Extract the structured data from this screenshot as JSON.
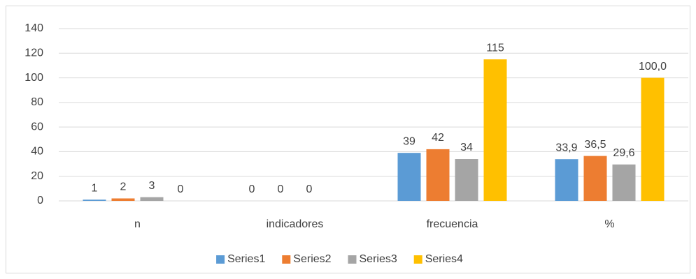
{
  "chart_data": {
    "type": "bar",
    "categories": [
      "n",
      "indicadores",
      "frecuencia",
      "%"
    ],
    "series": [
      {
        "name": "Series1",
        "color": "#5b9bd5",
        "values": [
          1,
          0,
          39,
          33.9
        ],
        "value_labels": [
          "1",
          "0",
          "39",
          "33,9"
        ]
      },
      {
        "name": "Series2",
        "color": "#ed7d31",
        "values": [
          2,
          0,
          42,
          36.5
        ],
        "value_labels": [
          "2",
          "0",
          "42",
          "36,5"
        ]
      },
      {
        "name": "Series3",
        "color": "#a5a5a5",
        "values": [
          3,
          0,
          34,
          29.6
        ],
        "value_labels": [
          "3",
          "0",
          "34",
          "29,6"
        ]
      },
      {
        "name": "Series4",
        "color": "#ffc000",
        "values": [
          0,
          null,
          115,
          100.0
        ],
        "value_labels": [
          "0",
          null,
          "115",
          "100,0"
        ]
      }
    ],
    "ylim": [
      0,
      140
    ],
    "yticks": [
      0,
      20,
      40,
      60,
      80,
      100,
      120,
      140
    ],
    "grid": true,
    "legend": "bottom"
  }
}
